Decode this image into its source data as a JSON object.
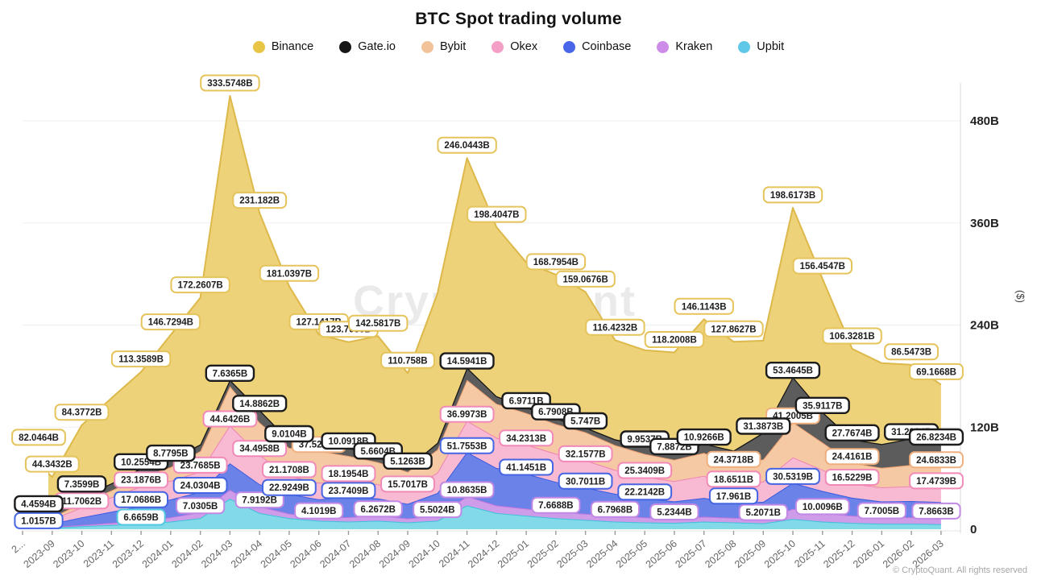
{
  "title": "BTC Spot trading volume",
  "watermark": "CryptoQuant",
  "copyright": "© CryptoQuant. All rights reserved",
  "legend": [
    {
      "label": "Binance",
      "color": "#e8c544"
    },
    {
      "label": "Gate.io",
      "color": "#161616"
    },
    {
      "label": "Bybit",
      "color": "#f2c29b"
    },
    {
      "label": "Okex",
      "color": "#f49fc6"
    },
    {
      "label": "Coinbase",
      "color": "#4a66e8"
    },
    {
      "label": "Kraken",
      "color": "#cc8ce8"
    },
    {
      "label": "Upbit",
      "color": "#5fc8e8"
    }
  ],
  "x_axis": {
    "labels_display": [
      "2...",
      "2023-09",
      "2023-10",
      "2023-11",
      "2023-12",
      "2024-01",
      "2024-02",
      "2024-03",
      "2024-04",
      "2024-05",
      "2024-06",
      "2024-07",
      "2024-08",
      "2024-09",
      "2024-10",
      "2024-11",
      "2024-12",
      "2025-01",
      "2025-02",
      "2025-03",
      "2025-04",
      "2025-05",
      "2025-06",
      "2025-07",
      "2025-08",
      "2025-09",
      "2025-10",
      "2025-11",
      "2025-12",
      "2026-01",
      "2026-02",
      "2026-03"
    ]
  },
  "y_axis": {
    "unit_label": "($)",
    "ticks": [
      {
        "value": 0,
        "label": "0"
      },
      {
        "value": 120,
        "label": "120B"
      },
      {
        "value": 240,
        "label": "240B"
      },
      {
        "value": 360,
        "label": "360B"
      },
      {
        "value": 480,
        "label": "480B"
      }
    ],
    "max": 480
  },
  "chart_data": {
    "type": "area",
    "stacked": true,
    "grid": "horizontal",
    "legend_position": "top",
    "ylim": [
      0,
      500
    ],
    "categories": [
      "2023-08",
      "2023-09",
      "2023-10",
      "2023-11",
      "2023-12",
      "2024-01",
      "2024-02",
      "2024-03",
      "2024-04",
      "2024-05",
      "2024-06",
      "2024-07",
      "2024-08",
      "2024-09",
      "2024-10",
      "2024-11",
      "2024-12",
      "2025-01",
      "2025-02",
      "2025-03",
      "2025-04",
      "2025-05",
      "2025-06",
      "2025-07",
      "2025-08",
      "2025-09",
      "2025-10",
      "2025-11",
      "2025-12",
      "2026-01",
      "2026-02",
      "2026-03"
    ],
    "note": "Stacked bottom-to-top: Upbit, Kraken, Coinbase, Okex, Bybit, Gate.io, Binance. Values at labeled_month_indices are read from on-chart labels; other values are visual estimates.",
    "series": [
      {
        "key": "upbit",
        "name": "Upbit",
        "fill": "#82d9e8",
        "line": "#3fc1dc",
        "chip": "#54c9e0",
        "values": [
          1,
          1.8,
          3.5,
          5,
          6.6659,
          9,
          13,
          36,
          19,
          13,
          10,
          9,
          10,
          8,
          10,
          28,
          19,
          16,
          13,
          11,
          9,
          8,
          7.5,
          9,
          8,
          7,
          12,
          9,
          7.5,
          6.5,
          6.5,
          6
        ],
        "labeled_month_indices": [
          4
        ]
      },
      {
        "key": "kraken",
        "name": "Kraken",
        "fill": "#cf9ce9",
        "line": "#bb76de",
        "chip": "#c189e5",
        "values": [
          0.4,
          0.8,
          1.5,
          2.5,
          3.5,
          5,
          7.0305,
          10.5,
          7.9192,
          5.5,
          4.1019,
          5.2,
          6.2672,
          4.8,
          5.5024,
          10.8635,
          9,
          8.2,
          7.6688,
          7.2,
          6.7968,
          6,
          5.2344,
          5.8,
          5.5,
          5.2071,
          12,
          10.0096,
          8.5,
          7.7005,
          7.6,
          7.8663
        ],
        "labeled_month_indices": [
          6,
          8,
          10,
          12,
          14,
          15,
          18,
          20,
          22,
          25,
          27,
          29,
          31
        ]
      },
      {
        "key": "coinbase",
        "name": "Coinbase",
        "fill": "#6b83e9",
        "line": "#3a5be0",
        "chip": "#4565e2",
        "values": [
          1.0157,
          4,
          9,
          13,
          17.0686,
          21,
          24.0304,
          31,
          26,
          22.9249,
          21,
          23.7409,
          20,
          17,
          27,
          51.7553,
          44,
          41.1451,
          35,
          30.7011,
          26,
          22.2142,
          20,
          22,
          17.961,
          20,
          30.5319,
          26,
          21,
          18.5,
          19,
          18
        ],
        "labeled_month_indices": [
          0,
          4,
          6,
          9,
          11,
          15,
          17,
          19,
          21,
          24,
          26
        ]
      },
      {
        "key": "okex",
        "name": "Okex",
        "fill": "#f7bad2",
        "line": "#f083b4",
        "chip": "#f18ab8",
        "values": [
          2.5,
          5,
          11.7062,
          17,
          23.1876,
          22,
          23.7685,
          44.6426,
          34.4958,
          21.1708,
          19.5,
          18.1954,
          16.5,
          15.7017,
          24,
          36.9973,
          35.5,
          34.2313,
          33,
          32.1577,
          28,
          25.3409,
          24,
          26,
          18.6511,
          24,
          30,
          25,
          16.5229,
          16.5,
          17.5,
          17.4739
        ],
        "labeled_month_indices": [
          2,
          4,
          6,
          7,
          8,
          9,
          11,
          13,
          15,
          17,
          19,
          21,
          24,
          28,
          31
        ]
      },
      {
        "key": "bybit",
        "name": "Bybit",
        "fill": "#f5c9a3",
        "line": "#efa071",
        "chip": "#efae7e",
        "values": [
          1.5,
          2.5,
          5,
          8,
          11,
          16,
          24,
          46,
          38,
          33,
          37.5238,
          30,
          26,
          22,
          27,
          48,
          40,
          37,
          35,
          33,
          29,
          27,
          25,
          27,
          24.3718,
          26,
          41.2005,
          32,
          24.4161,
          23,
          25,
          24.6833
        ],
        "labeled_month_indices": [
          10,
          24,
          26,
          28,
          31
        ]
      },
      {
        "key": "gateio",
        "name": "Gate.io",
        "fill": "#5c5c5c",
        "line": "#161616",
        "chip": "#1c1c1c",
        "values": [
          4.4594,
          3,
          7.3599,
          8.5,
          10.2554,
          8.7795,
          8,
          7.6365,
          14.8862,
          9.0104,
          9.5,
          10.0918,
          5.6604,
          5.1263,
          8,
          14.5941,
          9,
          6.9711,
          6.7908,
          5.747,
          7,
          9.9537,
          7.8872,
          10.9266,
          18,
          31.3873,
          53.4645,
          35.9117,
          27.7674,
          28,
          31.2964,
          26.8234
        ],
        "labeled_month_indices": [
          0,
          2,
          4,
          5,
          7,
          8,
          9,
          11,
          12,
          13,
          15,
          17,
          18,
          19,
          21,
          22,
          23,
          25,
          26,
          27,
          28,
          30,
          31
        ]
      },
      {
        "key": "binance",
        "name": "Binance",
        "fill": "#eed279",
        "line": "#ddb84a",
        "chip": "#e5c45c",
        "values": [
          82.0464,
          44.3432,
          84.3772,
          100,
          113.3589,
          146.7294,
          172.2607,
          333.5748,
          231.182,
          181.0397,
          127.1417,
          123.7056,
          142.5817,
          110.758,
          175,
          246.0443,
          198.4047,
          170,
          168.7954,
          159.0676,
          116.4232,
          112,
          118.2008,
          146.1143,
          127.8627,
          108,
          198.6173,
          156.4547,
          106.3281,
          95,
          86.5473,
          69.1668
        ],
        "labeled_month_indices": [
          0,
          1,
          2,
          4,
          5,
          6,
          7,
          8,
          9,
          10,
          11,
          12,
          13,
          15,
          16,
          18,
          19,
          20,
          22,
          23,
          24,
          26,
          27,
          28,
          30,
          31
        ]
      }
    ]
  }
}
